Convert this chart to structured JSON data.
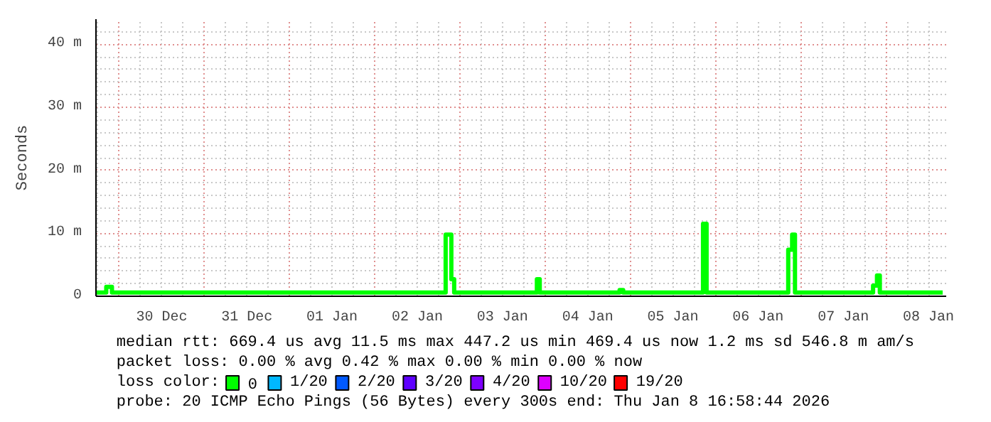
{
  "chart_data": {
    "type": "step",
    "ylabel": "Seconds",
    "x": [
      "2025-12-29T17:40",
      "2025-12-29T20:24",
      "2025-12-29T22:00",
      "2026-01-02T20:00",
      "2026-01-02T21:36",
      "2026-01-02T22:24",
      "2026-01-03T21:42",
      "2026-01-03T22:30",
      "2026-01-04T21:00",
      "2026-01-04T22:00",
      "2026-01-05T20:30",
      "2026-01-05T21:30",
      "2026-01-06T20:30",
      "2026-01-06T21:36",
      "2026-01-06T22:24",
      "2026-01-07T20:24",
      "2026-01-07T21:30",
      "2026-01-07T22:18",
      "2026-01-08T16:00"
    ],
    "series": [
      {
        "name": "0",
        "color": "#00ff00",
        "values": [
          0.6,
          1.5,
          0.6,
          9.8,
          2.7,
          0.6,
          2.7,
          0.6,
          1.0,
          0.6,
          11.5,
          0.6,
          7.4,
          9.8,
          0.6,
          1.7,
          3.3,
          0.6,
          0.6
        ]
      },
      {
        "name": "1/20",
        "color": "#00b8ff",
        "values": [
          null,
          null,
          null,
          null,
          null,
          null,
          null,
          null,
          null,
          null,
          null,
          null,
          null,
          null,
          null,
          null,
          null,
          null,
          null
        ]
      },
      {
        "name": "2/20",
        "color": "#0059ff",
        "values": [
          null,
          null,
          null,
          null,
          null,
          null,
          null,
          null,
          null,
          null,
          null,
          null,
          null,
          null,
          null,
          null,
          null,
          null,
          null
        ]
      },
      {
        "name": "3/20",
        "color": "#5e00ff",
        "values": [
          null,
          null,
          null,
          null,
          null,
          null,
          null,
          null,
          null,
          null,
          null,
          null,
          null,
          null,
          null,
          null,
          null,
          null,
          null
        ]
      },
      {
        "name": "4/20",
        "color": "#7e00ff",
        "values": [
          null,
          null,
          null,
          null,
          null,
          null,
          null,
          null,
          null,
          null,
          null,
          null,
          null,
          null,
          null,
          null,
          null,
          null,
          null
        ]
      },
      {
        "name": "10/20",
        "color": "#dd00ff",
        "values": [
          null,
          null,
          null,
          null,
          null,
          null,
          null,
          null,
          null,
          null,
          null,
          null,
          null,
          null,
          null,
          null,
          null,
          null,
          null
        ]
      },
      {
        "name": "19/20",
        "color": "#ff0000",
        "values": [
          null,
          null,
          null,
          null,
          null,
          null,
          null,
          null,
          null,
          null,
          null,
          null,
          null,
          null,
          null,
          null,
          null,
          null,
          null
        ]
      }
    ],
    "xlim": [
      "2025-12-29T17:30",
      "2026-01-08T17:00"
    ],
    "xticks": [
      {
        "value": "2025-12-30T12:00",
        "label": "30 Dec"
      },
      {
        "value": "2025-12-31T12:00",
        "label": "31 Dec"
      },
      {
        "value": "2026-01-01T12:00",
        "label": "01 Jan"
      },
      {
        "value": "2026-01-02T12:00",
        "label": "02 Jan"
      },
      {
        "value": "2026-01-03T12:00",
        "label": "03 Jan"
      },
      {
        "value": "2026-01-04T12:00",
        "label": "04 Jan"
      },
      {
        "value": "2026-01-05T12:00",
        "label": "05 Jan"
      },
      {
        "value": "2026-01-06T12:00",
        "label": "06 Jan"
      },
      {
        "value": "2026-01-07T12:00",
        "label": "07 Jan"
      },
      {
        "value": "2026-01-08T12:00",
        "label": "08 Jan"
      }
    ],
    "ylim": [
      0,
      44
    ],
    "yticks": [
      0,
      {
        "value": 10,
        "label": "10 m"
      },
      {
        "value": 20,
        "label": "20 m"
      },
      {
        "value": 30,
        "label": "30 m"
      },
      {
        "value": 40,
        "label": "40 m"
      }
    ],
    "grid": true,
    "legend": "bottom",
    "legend_title": "loss color:",
    "annotations": [
      "median rtt:  669.4 us avg  11.5 ms max  447.2 us min  469.4 us now  1.2 ms sd  546.8 m am/s",
      "packet loss: 0.00 % avg  0.42 % max  0.00 % min  0.00 % now",
      "probe:       20 ICMP Echo Pings (56 Bytes) every 300s              end: Thu Jan  8 16:58:44 2026"
    ]
  }
}
